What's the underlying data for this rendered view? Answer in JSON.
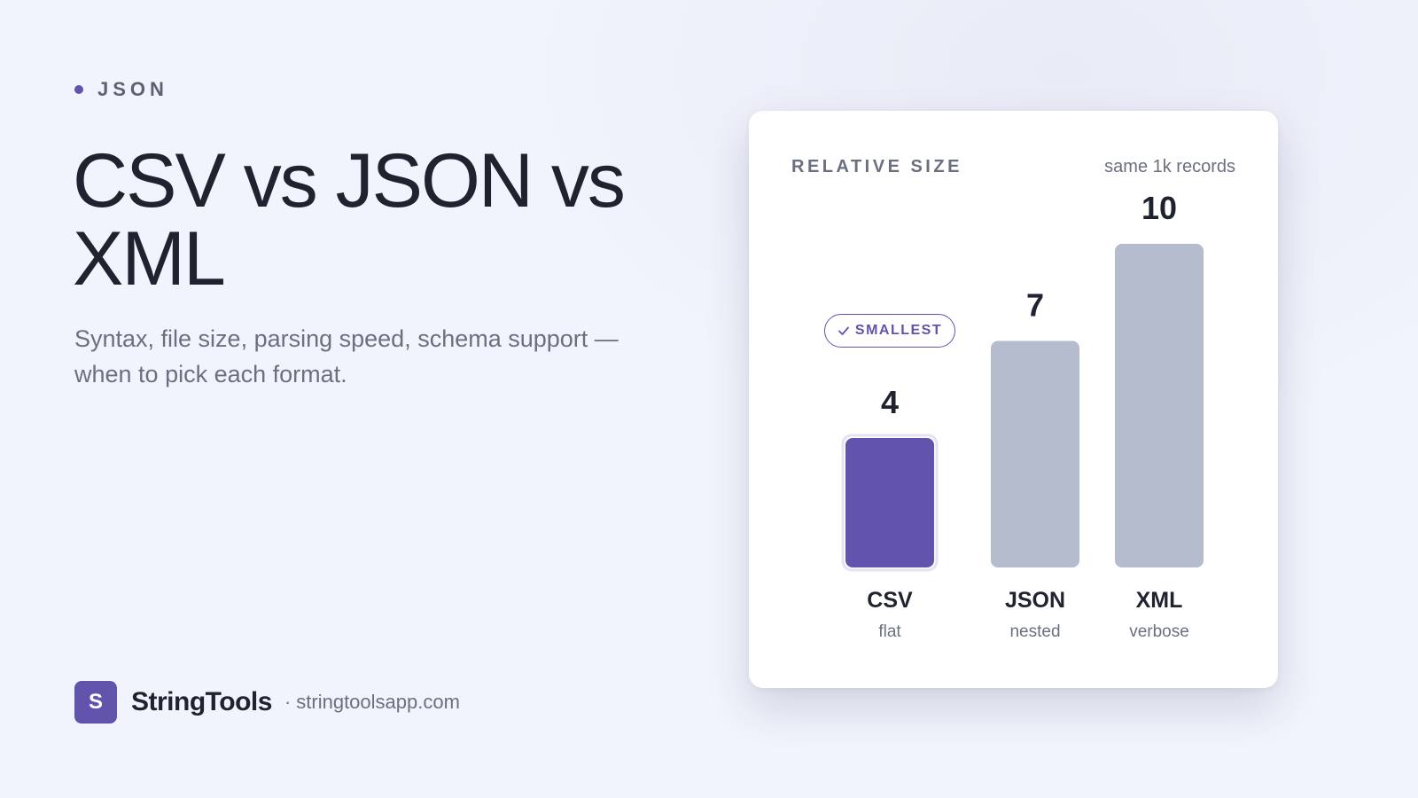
{
  "eyebrow": {
    "label": "JSON"
  },
  "heading": {
    "title": "CSV vs JSON vs XML",
    "subtitle": "Syntax, file size, parsing speed, schema support — when to pick each format."
  },
  "brand": {
    "logo_letter": "S",
    "name": "StringTools",
    "separator": "·",
    "url": "stringtoolsapp.com"
  },
  "card": {
    "badge_label": "SMALLEST"
  },
  "colors": {
    "accent": "#6253ad",
    "bar_default": "#b5bcce",
    "text_dark": "#1f2330",
    "text_muted": "#6b7080"
  },
  "chart_data": {
    "type": "bar",
    "title": "RELATIVE SIZE",
    "subtitle": "same 1k records",
    "categories": [
      "CSV",
      "JSON",
      "XML"
    ],
    "descriptions": [
      "flat",
      "nested",
      "verbose"
    ],
    "values": [
      4,
      7,
      10
    ],
    "highlight": "CSV",
    "ylim": [
      0,
      10
    ],
    "grid": false
  }
}
